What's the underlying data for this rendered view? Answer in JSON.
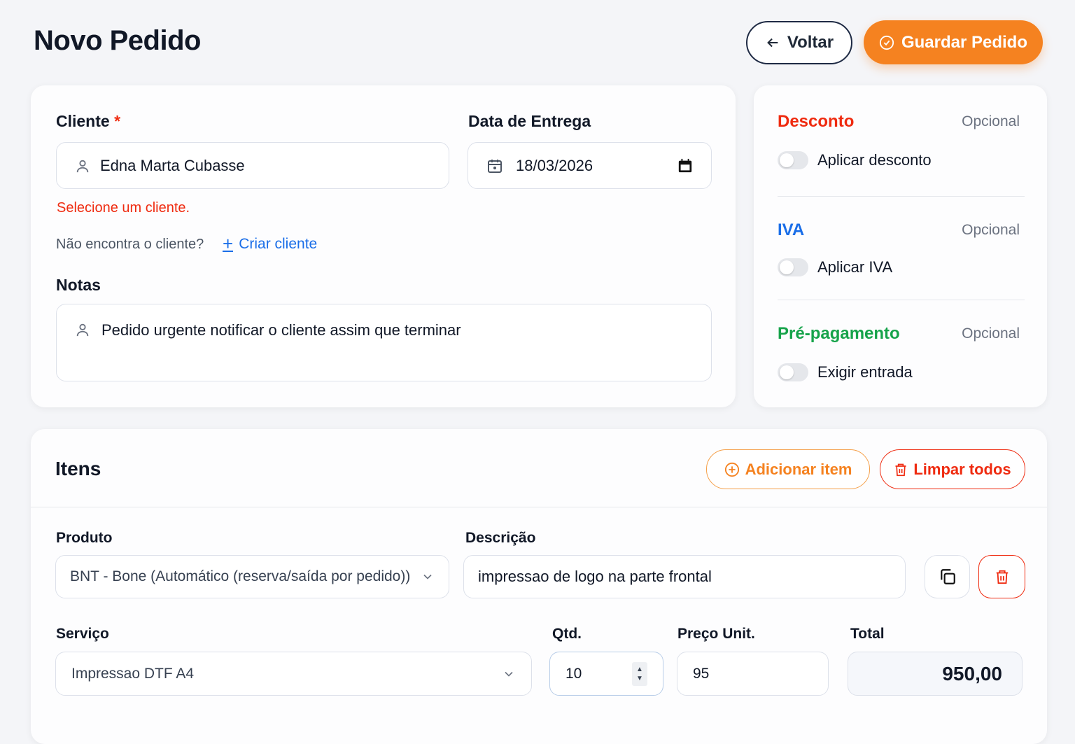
{
  "header": {
    "title": "Novo Pedido",
    "back_label": "Voltar",
    "save_label": "Guardar Pedido"
  },
  "client": {
    "label": "Cliente",
    "required_mark": "*",
    "value": "Edna Marta Cubasse",
    "error": "Selecione um cliente.",
    "not_found": "Não encontra o cliente?",
    "create_label": "Criar cliente"
  },
  "delivery": {
    "label": "Data de Entrega",
    "value": "18/03/2026"
  },
  "notes": {
    "label": "Notas",
    "value": "Pedido urgente notificar o cliente assim que terminar"
  },
  "options": [
    {
      "title": "Desconto",
      "badge": "Opcional",
      "toggle_label": "Aplicar desconto",
      "on": false,
      "color": "#ef2b10"
    },
    {
      "title": "IVA",
      "badge": "Opcional",
      "toggle_label": "Aplicar IVA",
      "on": false,
      "color": "#1a6ee8"
    },
    {
      "title": "Pré-pagamento",
      "badge": "Opcional",
      "toggle_label": "Exigir entrada",
      "on": false,
      "color": "#16a34a"
    }
  ],
  "items": {
    "title": "Itens",
    "add_label": "Adicionar item",
    "clear_label": "Limpar todos",
    "row": {
      "product_label": "Produto",
      "product_value": "BNT - Bone (Automático (reserva/saída por pedido))",
      "description_label": "Descrição",
      "description_value": "impressao de logo na parte frontal",
      "service_label": "Serviço",
      "service_value": "Impressao DTF A4",
      "qty_label": "Qtd.",
      "qty_value": "10",
      "price_label": "Preço Unit.",
      "price_value": "95",
      "total_label": "Total",
      "total_value": "950,00"
    }
  },
  "colors": {
    "accent": "#f58220",
    "danger": "#ef2b10",
    "link": "#1a6ee8"
  }
}
